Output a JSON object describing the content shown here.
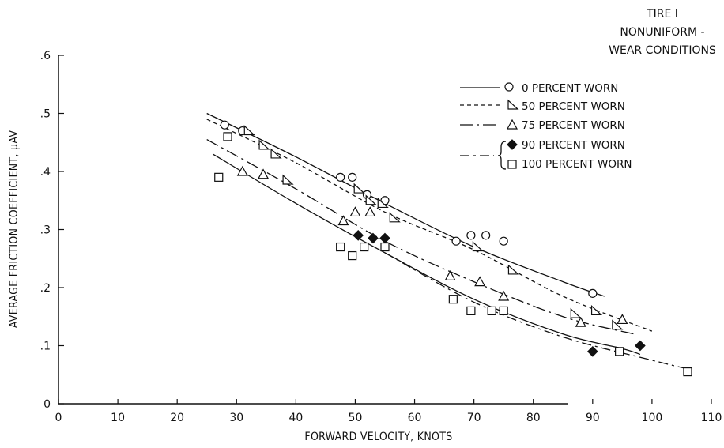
{
  "chart_data": {
    "type": "scatter",
    "title_lines": [
      "TIRE I",
      "NONUNIFORM -",
      "WEAR CONDITIONS"
    ],
    "xlabel": "FORWARD VELOCITY, KNOTS",
    "ylabel": "AVERAGE FRICTION COEFFICIENT, μAV",
    "xlim": [
      0,
      110
    ],
    "ylim": [
      0,
      0.6
    ],
    "x_ticks": [
      0,
      10,
      20,
      30,
      40,
      50,
      60,
      70,
      80,
      90,
      100,
      110
    ],
    "x_tick_labels": [
      "0",
      "10",
      "20",
      "30",
      "40",
      "50",
      "60",
      "70",
      "80",
      "90",
      "100",
      "110"
    ],
    "y_ticks": [
      0,
      0.1,
      0.2,
      0.3,
      0.4,
      0.5,
      0.6
    ],
    "y_tick_labels": [
      "0",
      ".1",
      ".2",
      ".3",
      ".4",
      ".5",
      ".6"
    ],
    "grid": false,
    "legend_position": "top-right",
    "series": [
      {
        "name": "0 PERCENT WORN",
        "marker": "circle",
        "points": [
          [
            28,
            0.48
          ],
          [
            31,
            0.47
          ],
          [
            47.5,
            0.39
          ],
          [
            49.5,
            0.39
          ],
          [
            52,
            0.36
          ],
          [
            55,
            0.35
          ],
          [
            67,
            0.28
          ],
          [
            69.5,
            0.29
          ],
          [
            72,
            0.29
          ],
          [
            75,
            0.28
          ],
          [
            90,
            0.19
          ]
        ]
      },
      {
        "name": "50 PERCENT WORN",
        "marker": "triangle-right",
        "points": [
          [
            32,
            0.47
          ],
          [
            34.5,
            0.445
          ],
          [
            36.5,
            0.43
          ],
          [
            38.5,
            0.385
          ],
          [
            50.5,
            0.37
          ],
          [
            52.5,
            0.35
          ],
          [
            54.5,
            0.345
          ],
          [
            56.5,
            0.32
          ],
          [
            70.5,
            0.27
          ],
          [
            76.5,
            0.23
          ],
          [
            87,
            0.155
          ],
          [
            90.5,
            0.16
          ],
          [
            94,
            0.135
          ]
        ]
      },
      {
        "name": "75 PERCENT WORN",
        "marker": "triangle-up",
        "points": [
          [
            31,
            0.4
          ],
          [
            34.5,
            0.395
          ],
          [
            48,
            0.315
          ],
          [
            50,
            0.33
          ],
          [
            52.5,
            0.33
          ],
          [
            66,
            0.22
          ],
          [
            71,
            0.21
          ],
          [
            75,
            0.185
          ],
          [
            88,
            0.14
          ],
          [
            95,
            0.145
          ]
        ]
      },
      {
        "name": "90 PERCENT WORN",
        "marker": "diamond-filled",
        "points": [
          [
            50.5,
            0.29
          ],
          [
            53,
            0.285
          ],
          [
            55,
            0.285
          ],
          [
            90,
            0.09
          ],
          [
            98,
            0.1
          ]
        ]
      },
      {
        "name": "100 PERCENT WORN",
        "marker": "square",
        "points": [
          [
            27,
            0.39
          ],
          [
            28.5,
            0.46
          ],
          [
            47.5,
            0.27
          ],
          [
            49.5,
            0.255
          ],
          [
            51.5,
            0.27
          ],
          [
            55,
            0.27
          ],
          [
            66.5,
            0.18
          ],
          [
            69.5,
            0.16
          ],
          [
            73,
            0.16
          ],
          [
            75,
            0.16
          ],
          [
            94.5,
            0.09
          ],
          [
            106,
            0.055
          ]
        ]
      }
    ],
    "fit_curves": [
      {
        "for": "0 PERCENT WORN",
        "style": "solid",
        "points": [
          [
            25,
            0.5
          ],
          [
            40,
            0.425
          ],
          [
            55,
            0.345
          ],
          [
            70,
            0.27
          ],
          [
            85,
            0.21
          ],
          [
            92,
            0.185
          ]
        ]
      },
      {
        "for": "50 PERCENT WORN",
        "style": "dashed",
        "points": [
          [
            25,
            0.49
          ],
          [
            40,
            0.415
          ],
          [
            55,
            0.33
          ],
          [
            70,
            0.265
          ],
          [
            85,
            0.185
          ],
          [
            100,
            0.125
          ]
        ]
      },
      {
        "for": "75 PERCENT WORN",
        "style": "long-dash-dot",
        "points": [
          [
            25,
            0.455
          ],
          [
            40,
            0.37
          ],
          [
            55,
            0.28
          ],
          [
            70,
            0.21
          ],
          [
            85,
            0.15
          ],
          [
            97,
            0.12
          ]
        ]
      },
      {
        "for": "90 AND 100 PERCENT WORN",
        "style": "solid",
        "points": [
          [
            26,
            0.43
          ],
          [
            40,
            0.345
          ],
          [
            55,
            0.26
          ],
          [
            70,
            0.18
          ],
          [
            85,
            0.12
          ],
          [
            95,
            0.095
          ],
          [
            98,
            0.085
          ]
        ]
      },
      {
        "for": "90 AND 100 PERCENT WORN",
        "style": "dash-dot",
        "points": [
          [
            55,
            0.26
          ],
          [
            70,
            0.175
          ],
          [
            85,
            0.115
          ],
          [
            100,
            0.075
          ],
          [
            106,
            0.06
          ]
        ]
      }
    ]
  }
}
